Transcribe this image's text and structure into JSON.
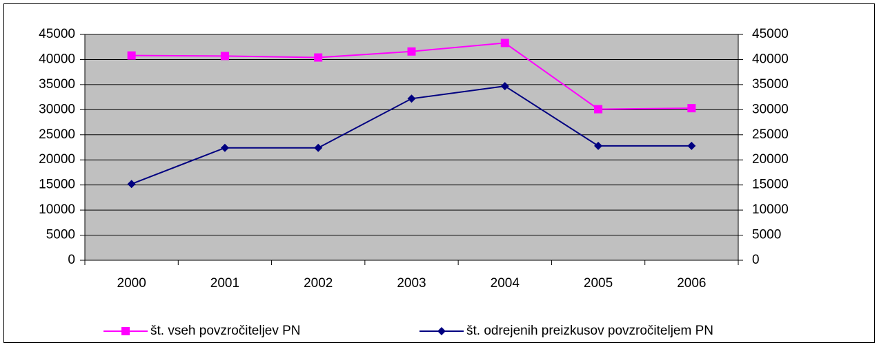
{
  "chart_data": {
    "type": "line",
    "categories": [
      "2000",
      "2001",
      "2002",
      "2003",
      "2004",
      "2005",
      "2006"
    ],
    "series": [
      {
        "name": "št. vseh povzročiteljev PN",
        "color": "#ff00ff",
        "marker": "square",
        "values": [
          40800,
          40700,
          40400,
          41600,
          43300,
          30100,
          30300
        ]
      },
      {
        "name": "št. odrejenih preizkusov povzročiteljem PN",
        "color": "#000080",
        "marker": "diamond",
        "values": [
          15200,
          22400,
          22400,
          32200,
          34700,
          22800,
          22800
        ]
      }
    ],
    "ylim": [
      0,
      45000
    ],
    "yticks": [
      0,
      5000,
      10000,
      15000,
      20000,
      25000,
      30000,
      35000,
      40000,
      45000
    ],
    "y2lim": [
      0,
      45000
    ],
    "y2ticks": [
      0,
      5000,
      10000,
      15000,
      20000,
      25000,
      30000,
      35000,
      40000,
      45000
    ],
    "grid": true,
    "legend": "bottom",
    "plot_background": "#c0c0c0"
  }
}
